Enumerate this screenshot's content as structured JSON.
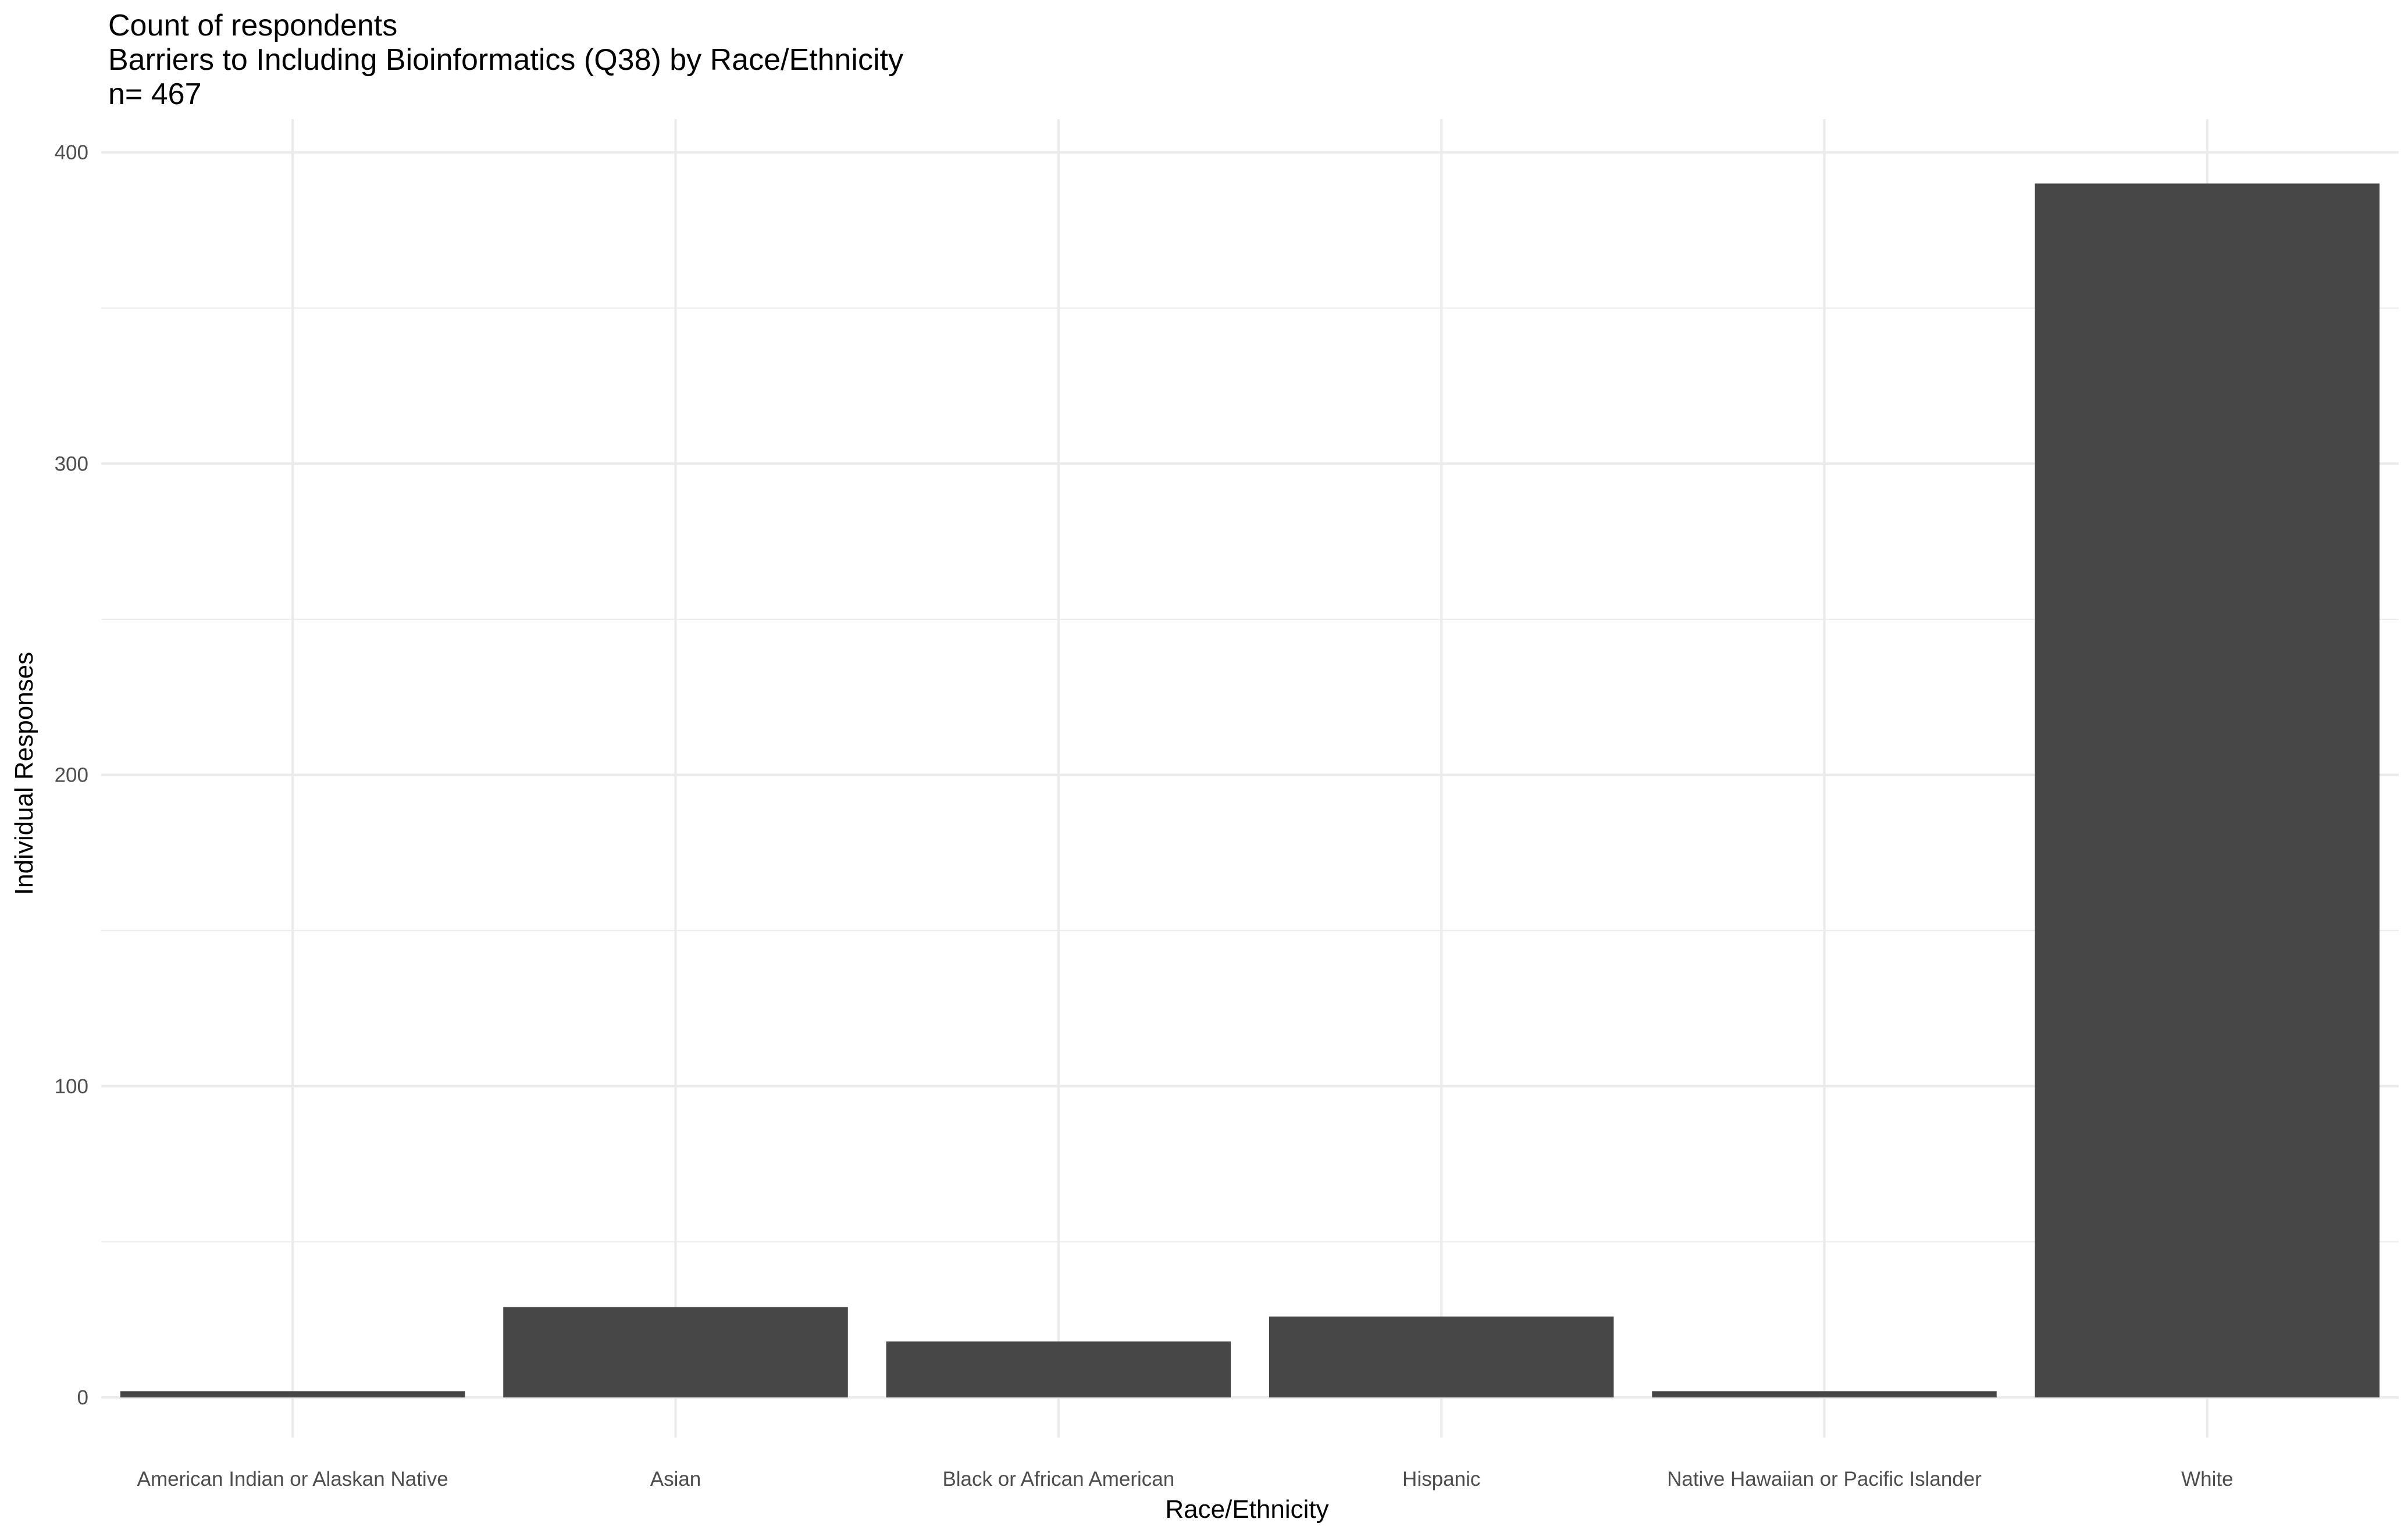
{
  "chart_data": {
    "type": "bar",
    "title": "Count of respondents",
    "subtitle": "Barriers to Including Bioinformatics (Q38) by Race/Ethnicity",
    "caption_n": "n= 467",
    "xlabel": "Race/Ethnicity",
    "ylabel": "Individual Responses",
    "categories": [
      "American Indian or Alaskan Native",
      "Asian",
      "Black or African American",
      "Hispanic",
      "Native Hawaiian or Pacific Islander",
      "White"
    ],
    "values": [
      2,
      29,
      18,
      26,
      2,
      390
    ],
    "ylim": [
      0,
      410
    ],
    "yticks": [
      0,
      100,
      200,
      300,
      400
    ],
    "ytick_labels": [
      "0",
      "100",
      "200",
      "300",
      "400"
    ],
    "grid": true,
    "legend": "none",
    "bar_color": "#474747",
    "grid_color": "#ebebeb",
    "tick_label_color": "#4d4d4d"
  }
}
